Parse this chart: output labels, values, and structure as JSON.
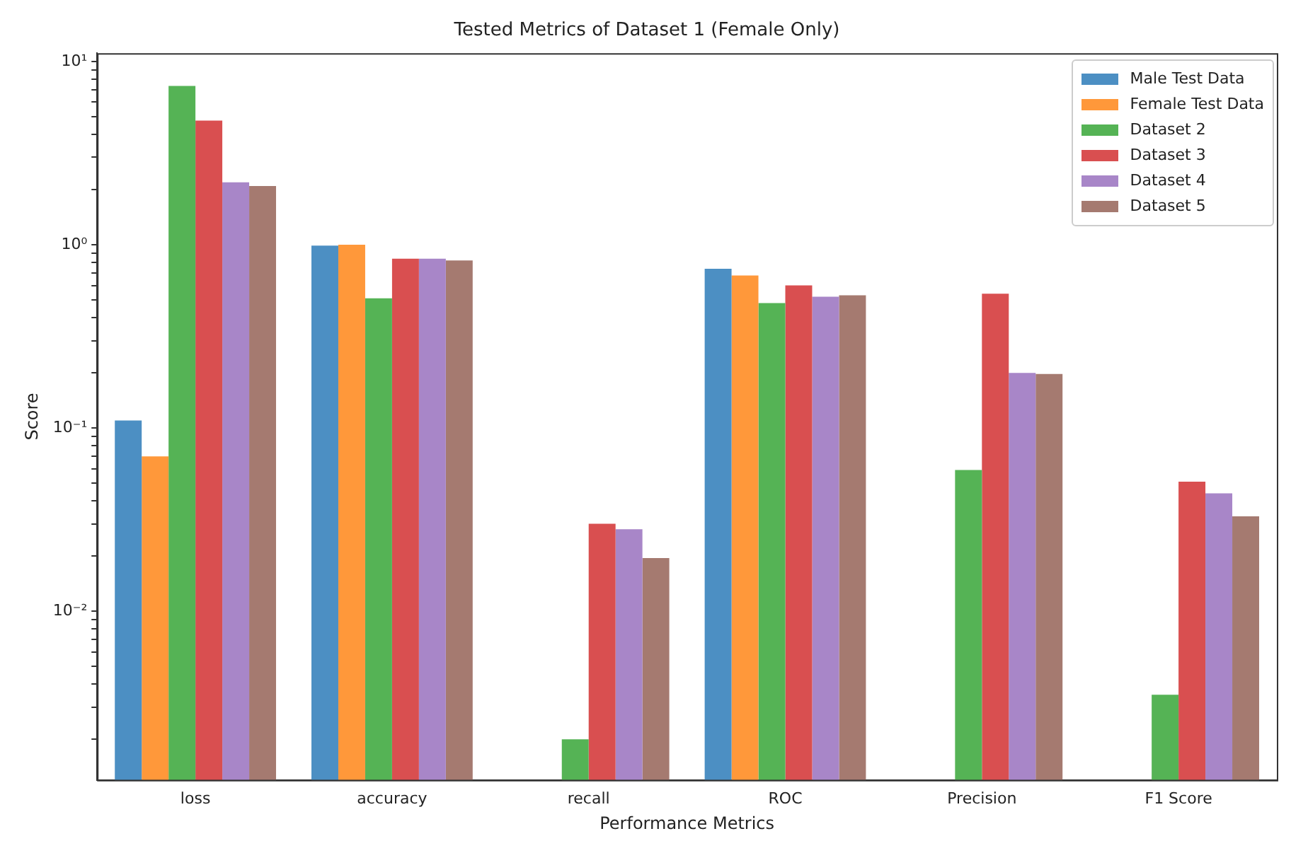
{
  "chart_data": {
    "type": "bar",
    "title": "Tested Metrics of Dataset 1 (Female Only)",
    "xlabel": "Performance Metrics",
    "ylabel": "Score",
    "categories": [
      "loss",
      "accuracy",
      "recall",
      "ROC",
      "Precision",
      "F1 Score"
    ],
    "series": [
      {
        "name": "Male Test Data",
        "color": "#4c8fc3",
        "values": [
          0.11,
          0.99,
          null,
          0.74,
          null,
          null
        ]
      },
      {
        "name": "Female Test Data",
        "color": "#ff983a",
        "values": [
          0.07,
          1.0,
          null,
          0.68,
          null,
          null
        ]
      },
      {
        "name": "Dataset 2",
        "color": "#55b355",
        "values": [
          7.35,
          0.51,
          0.002,
          0.48,
          0.059,
          0.0035
        ]
      },
      {
        "name": "Dataset 3",
        "color": "#d94f50",
        "values": [
          4.76,
          0.84,
          0.03,
          0.6,
          0.54,
          0.051
        ]
      },
      {
        "name": "Dataset 4",
        "color": "#a886c8",
        "values": [
          2.19,
          0.84,
          0.028,
          0.52,
          0.2,
          0.044
        ]
      },
      {
        "name": "Dataset 5",
        "color": "#a57a70",
        "values": [
          2.09,
          0.82,
          0.0195,
          0.53,
          0.197,
          0.033
        ]
      }
    ],
    "log": "y",
    "ylim": [
      0.0012,
      11.1
    ],
    "yticks": [
      {
        "value": 0.002,
        "label": null
      },
      {
        "value": 0.003,
        "label": null
      },
      {
        "value": 0.004,
        "label": null
      },
      {
        "value": 0.005,
        "label": null
      },
      {
        "value": 0.006,
        "label": null
      },
      {
        "value": 0.007,
        "label": null
      },
      {
        "value": 0.008,
        "label": null
      },
      {
        "value": 0.009,
        "label": null
      },
      {
        "value": 0.01,
        "label": "10⁻²"
      },
      {
        "value": 0.02,
        "label": null
      },
      {
        "value": 0.03,
        "label": null
      },
      {
        "value": 0.04,
        "label": null
      },
      {
        "value": 0.05,
        "label": null
      },
      {
        "value": 0.06,
        "label": null
      },
      {
        "value": 0.07,
        "label": null
      },
      {
        "value": 0.08,
        "label": null
      },
      {
        "value": 0.09,
        "label": null
      },
      {
        "value": 0.1,
        "label": "10⁻¹"
      },
      {
        "value": 0.2,
        "label": null
      },
      {
        "value": 0.3,
        "label": null
      },
      {
        "value": 0.4,
        "label": null
      },
      {
        "value": 0.5,
        "label": null
      },
      {
        "value": 0.6,
        "label": null
      },
      {
        "value": 0.7,
        "label": null
      },
      {
        "value": 0.8,
        "label": null
      },
      {
        "value": 0.9,
        "label": null
      },
      {
        "value": 1,
        "label": "10⁰"
      },
      {
        "value": 2,
        "label": null
      },
      {
        "value": 3,
        "label": null
      },
      {
        "value": 4,
        "label": null
      },
      {
        "value": 5,
        "label": null
      },
      {
        "value": 6,
        "label": null
      },
      {
        "value": 7,
        "label": null
      },
      {
        "value": 8,
        "label": null
      },
      {
        "value": 9,
        "label": null
      },
      {
        "value": 10,
        "label": "10¹"
      }
    ],
    "legend": "top right"
  }
}
